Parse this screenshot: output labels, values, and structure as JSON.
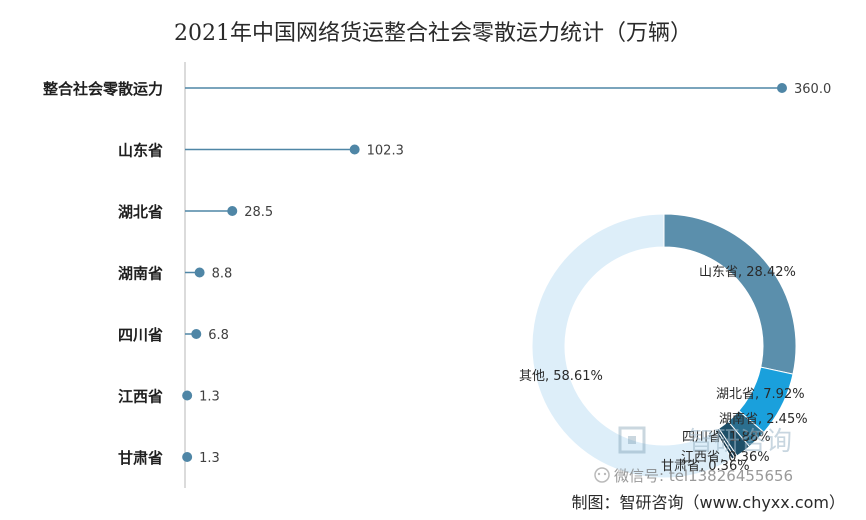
{
  "chart_data": [
    {
      "type": "bar",
      "title": "2021年中国网络货运整合社会零散运力统计（万辆）",
      "categories": [
        "整合社会零散运力",
        "山东省",
        "湖北省",
        "湖南省",
        "四川省",
        "江西省",
        "甘肃省"
      ],
      "values": [
        360.0,
        102.3,
        28.5,
        8.8,
        6.8,
        1.3,
        1.3
      ],
      "value_labels": [
        "360.0",
        "102.3",
        "28.5",
        "8.8",
        "6.8",
        "1.3",
        "1.3"
      ],
      "style": "lollipop",
      "grid": false,
      "color": "#4f86a6"
    },
    {
      "type": "pie",
      "variant": "donut",
      "labels": [
        "山东省",
        "湖北省",
        "湖南省",
        "四川省",
        "江西省",
        "甘肃省",
        "其他"
      ],
      "values": [
        28.42,
        7.92,
        2.45,
        1.88,
        0.36,
        0.36,
        58.61
      ],
      "slice_labels": [
        "山东省, 28.42%",
        "湖北省, 7.92%",
        "湖南省, 2.45%",
        "四川省, 1.88%",
        "江西省, 0.36%",
        "甘肃省, 0.36%",
        "其他, 58.61%"
      ],
      "colors": [
        "#5b8fac",
        "#1aa0dc",
        "#2b6f8f",
        "#1e4f68",
        "#16405a",
        "#123448",
        "#ddeef9"
      ]
    }
  ],
  "watermark": {
    "brand": "智研咨询",
    "wechat": "微信号: tel13826455656",
    "credit": "制图：智研咨询（www.chyxx.com）"
  }
}
